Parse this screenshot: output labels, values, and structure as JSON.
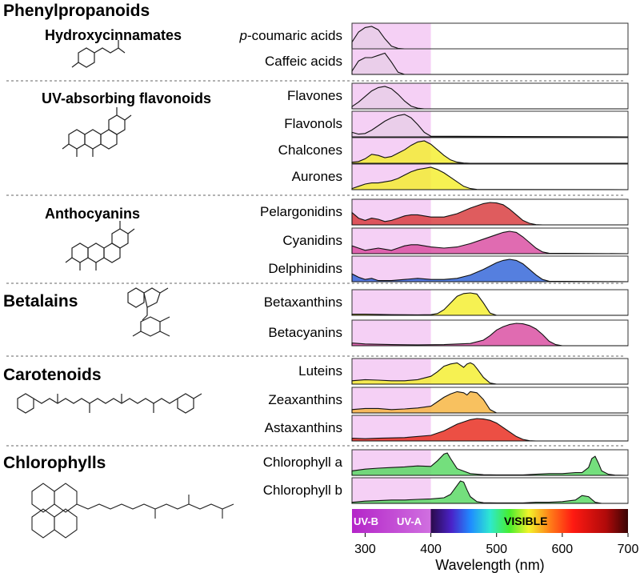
{
  "groups": [
    {
      "title": "Phenylpropanoids",
      "level": "main"
    },
    {
      "title": "Hydroxycinnamates",
      "level": "sub"
    },
    {
      "title": "UV-absorbing flavonoids",
      "level": "sub"
    },
    {
      "title": "Anthocyanins",
      "level": "sub"
    },
    {
      "title": "Betalains",
      "level": "main"
    },
    {
      "title": "Carotenoids",
      "level": "main"
    },
    {
      "title": "Chlorophylls",
      "level": "main"
    }
  ],
  "bands": {
    "uvb": "UV-B",
    "uva": "UV-A",
    "visible": "VISIBLE"
  },
  "colors": {
    "uv_region": "#f5d0f5",
    "pink": "#d94aa0",
    "red": "#d8383a",
    "yellow": "#f4ee2c",
    "orange": "#f6b33c",
    "blue": "#2f63d8",
    "green": "#56d860",
    "lavender": "#e8cde8"
  },
  "chart_data": {
    "type": "area",
    "xlabel": "Wavelength (nm)",
    "xlim": [
      280,
      700
    ],
    "xticks": [
      300,
      400,
      500,
      600,
      700
    ],
    "uv_region": [
      280,
      400
    ],
    "series": [
      {
        "name": "p-coumaric acids",
        "prefix": "p",
        "suffix": "-coumaric acids",
        "color": "#e8cde8",
        "x": [
          280,
          290,
          300,
          310,
          320,
          330,
          340,
          350,
          360,
          700
        ],
        "y": [
          0.3,
          0.75,
          0.95,
          1,
          0.85,
          0.45,
          0.12,
          0.02,
          0,
          0
        ]
      },
      {
        "name": "Caffeic acids",
        "color": "#e8cde8",
        "x": [
          280,
          290,
          300,
          310,
          320,
          330,
          340,
          350,
          360,
          700
        ],
        "y": [
          0.15,
          0.6,
          0.75,
          0.75,
          0.85,
          0.95,
          0.55,
          0.1,
          0,
          0
        ]
      },
      {
        "name": "Flavones",
        "color": "#e8cde8",
        "x": [
          280,
          290,
          300,
          310,
          320,
          330,
          340,
          350,
          360,
          370,
          380,
          390,
          700
        ],
        "y": [
          0.1,
          0.3,
          0.55,
          0.8,
          0.95,
          1,
          0.9,
          0.65,
          0.35,
          0.12,
          0.03,
          0,
          0
        ]
      },
      {
        "name": "Flavonols",
        "color": "#e8cde8",
        "x": [
          280,
          290,
          300,
          310,
          320,
          330,
          340,
          350,
          360,
          370,
          380,
          390,
          400,
          700
        ],
        "y": [
          0.2,
          0.12,
          0.15,
          0.3,
          0.5,
          0.7,
          0.85,
          0.95,
          1,
          0.85,
          0.55,
          0.2,
          0.03,
          0
        ]
      },
      {
        "name": "Chalcones",
        "color": "#f4ee2c",
        "x": [
          280,
          290,
          300,
          310,
          320,
          330,
          340,
          350,
          360,
          370,
          380,
          390,
          400,
          410,
          420,
          430,
          440,
          450,
          460,
          700
        ],
        "y": [
          0.05,
          0.08,
          0.2,
          0.4,
          0.35,
          0.25,
          0.3,
          0.45,
          0.6,
          0.8,
          0.95,
          1,
          0.85,
          0.6,
          0.35,
          0.15,
          0.05,
          0.01,
          0,
          0
        ]
      },
      {
        "name": "Aurones",
        "color": "#f4ee2c",
        "x": [
          280,
          290,
          300,
          310,
          320,
          330,
          340,
          350,
          360,
          370,
          380,
          390,
          400,
          410,
          420,
          430,
          440,
          450,
          460,
          470,
          700
        ],
        "y": [
          0.05,
          0.15,
          0.25,
          0.3,
          0.3,
          0.35,
          0.4,
          0.5,
          0.65,
          0.8,
          0.9,
          0.95,
          1,
          0.9,
          0.75,
          0.55,
          0.35,
          0.15,
          0.05,
          0.01,
          0
        ]
      },
      {
        "name": "Pelargonidins",
        "color": "#d8383a",
        "x": [
          280,
          290,
          300,
          310,
          320,
          330,
          340,
          350,
          360,
          370,
          380,
          400,
          420,
          440,
          460,
          480,
          490,
          500,
          510,
          520,
          530,
          540,
          550,
          560,
          570,
          700
        ],
        "y": [
          0.55,
          0.3,
          0.2,
          0.3,
          0.25,
          0.15,
          0.2,
          0.3,
          0.4,
          0.45,
          0.45,
          0.35,
          0.35,
          0.5,
          0.75,
          0.95,
          1,
          0.98,
          0.9,
          0.7,
          0.45,
          0.2,
          0.07,
          0.01,
          0,
          0
        ]
      },
      {
        "name": "Cyanidins",
        "color": "#d94aa0",
        "x": [
          280,
          290,
          300,
          310,
          320,
          330,
          340,
          350,
          360,
          370,
          380,
          400,
          420,
          440,
          460,
          480,
          500,
          510,
          520,
          530,
          540,
          550,
          560,
          570,
          580,
          700
        ],
        "y": [
          0.35,
          0.25,
          0.15,
          0.2,
          0.25,
          0.2,
          0.15,
          0.25,
          0.35,
          0.4,
          0.4,
          0.3,
          0.25,
          0.3,
          0.45,
          0.65,
          0.85,
          0.95,
          1,
          0.95,
          0.75,
          0.5,
          0.25,
          0.08,
          0.02,
          0
        ]
      },
      {
        "name": "Delphinidins",
        "color": "#2f63d8",
        "x": [
          280,
          290,
          300,
          310,
          320,
          340,
          360,
          380,
          400,
          420,
          440,
          460,
          480,
          500,
          510,
          520,
          530,
          540,
          550,
          560,
          570,
          580,
          700
        ],
        "y": [
          0.35,
          0.2,
          0.1,
          0.15,
          0.05,
          0.05,
          0.1,
          0.15,
          0.1,
          0.1,
          0.15,
          0.3,
          0.55,
          0.85,
          0.95,
          1,
          0.95,
          0.8,
          0.55,
          0.3,
          0.1,
          0.02,
          0
        ]
      },
      {
        "name": "Betaxanthins",
        "color": "#f4ee2c",
        "x": [
          280,
          300,
          340,
          380,
          400,
          410,
          420,
          430,
          440,
          450,
          460,
          470,
          480,
          490,
          500,
          700
        ],
        "y": [
          0.05,
          0.05,
          0.03,
          0.02,
          0.03,
          0.08,
          0.25,
          0.55,
          0.85,
          0.97,
          1,
          0.95,
          0.55,
          0.1,
          0,
          0
        ]
      },
      {
        "name": "Betacyanins",
        "color": "#d94aa0",
        "x": [
          280,
          300,
          340,
          380,
          420,
          460,
          480,
          490,
          500,
          510,
          520,
          530,
          540,
          550,
          560,
          570,
          580,
          590,
          600,
          700
        ],
        "y": [
          0.12,
          0.08,
          0.05,
          0.04,
          0.05,
          0.1,
          0.25,
          0.45,
          0.7,
          0.85,
          0.95,
          1,
          0.98,
          0.9,
          0.75,
          0.5,
          0.2,
          0.05,
          0,
          0
        ]
      },
      {
        "name": "Luteins",
        "color": "#f4ee2c",
        "x": [
          280,
          300,
          320,
          340,
          360,
          380,
          400,
          410,
          420,
          430,
          440,
          445,
          450,
          455,
          460,
          465,
          470,
          480,
          490,
          500,
          700
        ],
        "y": [
          0.15,
          0.2,
          0.18,
          0.15,
          0.15,
          0.2,
          0.35,
          0.55,
          0.8,
          0.9,
          0.95,
          0.85,
          0.75,
          0.9,
          0.95,
          0.88,
          0.7,
          0.3,
          0.05,
          0,
          0
        ]
      },
      {
        "name": "Zeaxanthins",
        "color": "#f6b33c",
        "x": [
          280,
          300,
          320,
          340,
          360,
          380,
          400,
          410,
          420,
          430,
          440,
          450,
          455,
          460,
          470,
          480,
          490,
          500,
          700
        ],
        "y": [
          0.15,
          0.2,
          0.2,
          0.15,
          0.18,
          0.22,
          0.3,
          0.5,
          0.7,
          0.85,
          0.95,
          0.9,
          0.8,
          0.95,
          0.9,
          0.6,
          0.15,
          0,
          0
        ]
      },
      {
        "name": "Astaxanthins",
        "color": "#e8281b",
        "x": [
          280,
          300,
          320,
          360,
          400,
          420,
          440,
          460,
          470,
          480,
          490,
          500,
          510,
          520,
          530,
          540,
          550,
          560,
          700
        ],
        "y": [
          0.12,
          0.1,
          0.12,
          0.15,
          0.25,
          0.45,
          0.75,
          0.95,
          1,
          0.98,
          0.92,
          0.8,
          0.6,
          0.4,
          0.2,
          0.07,
          0.01,
          0,
          0
        ]
      },
      {
        "name": "Chlorophyll a",
        "color": "#56d860",
        "x": [
          280,
          300,
          320,
          340,
          360,
          380,
          400,
          410,
          420,
          425,
          430,
          440,
          460,
          480,
          500,
          540,
          560,
          580,
          600,
          610,
          620,
          630,
          640,
          645,
          650,
          655,
          660,
          670,
          680,
          700
        ],
        "y": [
          0.2,
          0.28,
          0.32,
          0.35,
          0.38,
          0.42,
          0.4,
          0.65,
          0.95,
          1,
          0.75,
          0.3,
          0.08,
          0.03,
          0.02,
          0.02,
          0.05,
          0.08,
          0.08,
          0.1,
          0.12,
          0.12,
          0.35,
          0.75,
          0.85,
          0.55,
          0.2,
          0.05,
          0.01,
          0
        ]
      },
      {
        "name": "Chlorophyll b",
        "color": "#56d860",
        "x": [
          280,
          300,
          320,
          340,
          360,
          380,
          400,
          420,
          430,
          440,
          445,
          450,
          455,
          460,
          470,
          480,
          500,
          540,
          560,
          580,
          600,
          620,
          630,
          640,
          650,
          660,
          700
        ],
        "y": [
          0.05,
          0.1,
          0.12,
          0.15,
          0.15,
          0.18,
          0.2,
          0.25,
          0.4,
          0.8,
          1,
          0.95,
          0.6,
          0.3,
          0.08,
          0.03,
          0.02,
          0.02,
          0.05,
          0.05,
          0.08,
          0.15,
          0.35,
          0.3,
          0.05,
          0,
          0
        ]
      }
    ]
  }
}
